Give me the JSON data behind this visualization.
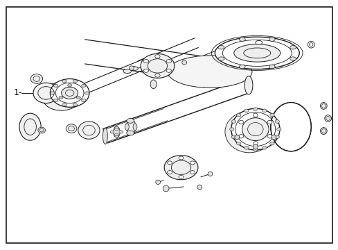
{
  "background_color": "#ffffff",
  "border_color": "#1a1a1a",
  "line_color": "#1a1a1a",
  "label_color": "#000000",
  "label_text": "1-",
  "fig_width": 4.89,
  "fig_height": 3.6,
  "dpi": 100
}
